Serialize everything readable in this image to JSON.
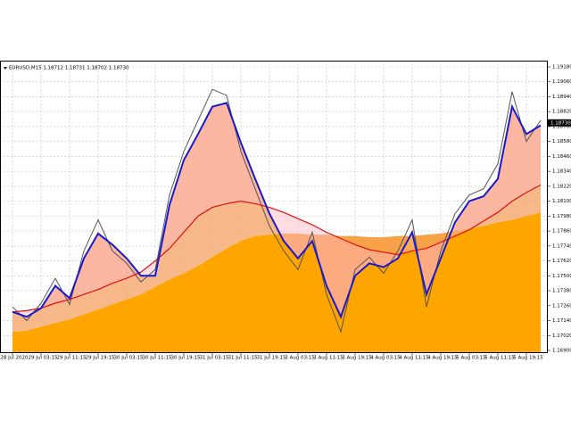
{
  "chart_data": {
    "type": "line",
    "title": "EURUSD,M15  1.18712 1.18731 1.18702 1.18730",
    "current_price": {
      "value": 1.1873,
      "label": "1.18730"
    },
    "categories": [
      "28 Jul 2020",
      null,
      "29 Jul 03:15",
      null,
      "29 Jul 11:15",
      null,
      "29 Jul 19:15",
      null,
      "30 Jul 03:15",
      null,
      "30 Jul 11:15",
      null,
      "30 Jul 19:15",
      null,
      "31 Jul 03:15",
      null,
      "31 Jul 11:15",
      null,
      "31 Jul 19:15",
      null,
      "3 Aug 03:15",
      null,
      "3 Aug 11:15",
      null,
      "3 Aug 19:15",
      null,
      "4 Aug 03:15",
      null,
      "4 Aug 11:15",
      null,
      "4 Aug 19:15",
      null,
      "5 Aug 03:15",
      null,
      "5 Aug 11:15",
      null,
      "5 Aug 19:15",
      null
    ],
    "series": [
      {
        "color": "#ffa500",
        "values": [
          1.1705,
          1.1706,
          1.1709,
          1.1712,
          1.1715,
          1.1719,
          1.1723,
          1.1727,
          1.1731,
          1.1735,
          1.1741,
          1.1747,
          1.1752,
          1.1758,
          1.1765,
          1.1772,
          1.1778,
          1.1782,
          1.1783,
          1.1784,
          1.1784,
          1.1783,
          1.1783,
          1.1782,
          1.1782,
          1.1781,
          1.1781,
          1.1782,
          1.1782,
          1.1783,
          1.1784,
          1.1786,
          1.1788,
          1.179,
          1.1793,
          1.1795,
          1.1798,
          1.1801
        ]
      },
      {
        "color": "#dd1111",
        "values": [
          1.1721,
          1.1722,
          1.1724,
          1.1728,
          1.1731,
          1.1735,
          1.1739,
          1.1744,
          1.1748,
          1.1753,
          1.1762,
          1.1772,
          1.1785,
          1.1798,
          1.1805,
          1.1808,
          1.181,
          1.1808,
          1.1805,
          1.1801,
          1.1796,
          1.1791,
          1.1785,
          1.178,
          1.1775,
          1.1771,
          1.1769,
          1.1767,
          1.177,
          1.1772,
          1.1777,
          1.1782,
          1.1787,
          1.1794,
          1.1801,
          1.181,
          1.1817,
          1.1823
        ]
      },
      {
        "color": "#555555",
        "values": [
          1.1725,
          1.1714,
          1.1728,
          1.1748,
          1.1727,
          1.177,
          1.1795,
          1.177,
          1.176,
          1.1745,
          1.1755,
          1.1815,
          1.185,
          1.1875,
          1.19,
          1.1895,
          1.185,
          1.182,
          1.179,
          1.177,
          1.1755,
          1.1785,
          1.1735,
          1.1705,
          1.1755,
          1.1765,
          1.1752,
          1.177,
          1.1795,
          1.1725,
          1.177,
          1.18,
          1.1815,
          1.182,
          1.184,
          1.1898,
          1.1858,
          1.1875
        ]
      },
      {
        "color": "#1a1acc",
        "values": [
          1.1721,
          1.1717,
          1.1724,
          1.1742,
          1.1732,
          1.1764,
          1.1784,
          1.1775,
          1.1764,
          1.175,
          1.175,
          1.1807,
          1.1843,
          1.1864,
          1.1886,
          1.1889,
          1.1857,
          1.1828,
          1.18,
          1.1778,
          1.1764,
          1.1778,
          1.1742,
          1.1717,
          1.175,
          1.176,
          1.1757,
          1.1764,
          1.1785,
          1.1735,
          1.1764,
          1.1793,
          1.181,
          1.1814,
          1.1828,
          1.1886,
          1.1864,
          1.1871
        ]
      }
    ],
    "ylim": [
      1.169,
      1.1918
    ],
    "yticks": [
      {
        "value": 1.169,
        "label": "1.16900"
      },
      {
        "value": 1.1702,
        "label": "1.17020"
      },
      {
        "value": 1.1714,
        "label": "1.17140"
      },
      {
        "value": 1.1726,
        "label": "1.17260"
      },
      {
        "value": 1.1738,
        "label": "1.17380"
      },
      {
        "value": 1.175,
        "label": "1.17500"
      },
      {
        "value": 1.1762,
        "label": "1.17620"
      },
      {
        "value": 1.1774,
        "label": "1.17740"
      },
      {
        "value": 1.1786,
        "label": "1.17860"
      },
      {
        "value": 1.1798,
        "label": "1.17980"
      },
      {
        "value": 1.181,
        "label": "1.18100"
      },
      {
        "value": 1.1822,
        "label": "1.18220"
      },
      {
        "value": 1.1834,
        "label": "1.18340"
      },
      {
        "value": 1.1846,
        "label": "1.18460"
      },
      {
        "value": 1.1858,
        "label": "1.18580"
      },
      {
        "value": 1.187,
        "label": "1.18700"
      },
      {
        "value": 1.1882,
        "label": "1.18820"
      },
      {
        "value": 1.1894,
        "label": "1.18940"
      },
      {
        "value": 1.1906,
        "label": "1.19060"
      },
      {
        "value": 1.1918,
        "label": "1.19180"
      }
    ],
    "grid": true
  }
}
